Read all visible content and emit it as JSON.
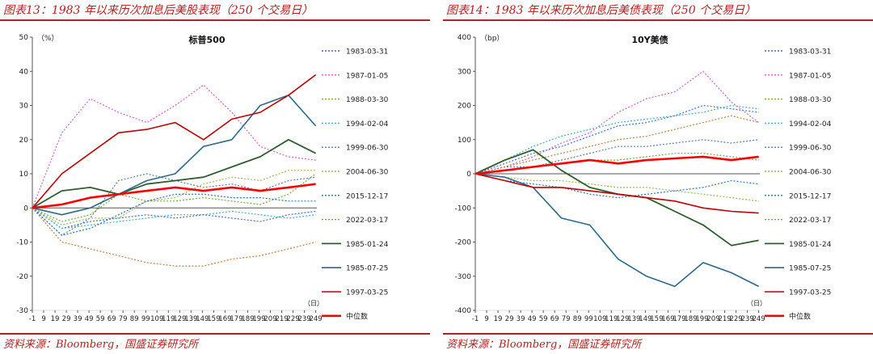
{
  "series_meta": [
    {
      "name": "1983-03-31",
      "color": "#4472c4",
      "dash": "2,2",
      "width": 1.2
    },
    {
      "name": "1987-01-05",
      "color": "#cc66cc",
      "dash": "2,2",
      "width": 1.2
    },
    {
      "name": "1988-03-30",
      "color": "#70ad47",
      "dash": "2,2",
      "width": 1.2
    },
    {
      "name": "1994-02-04",
      "color": "#4bacc6",
      "dash": "2,2",
      "width": 1.2
    },
    {
      "name": "1999-06-30",
      "color": "#5b7fb0",
      "dash": "2,2",
      "width": 1.2
    },
    {
      "name": "2004-06-30",
      "color": "#9bbb59",
      "dash": "2,2",
      "width": 1.2
    },
    {
      "name": "2015-12-17",
      "color": "#2e75b6",
      "dash": "2,2",
      "width": 1.2
    },
    {
      "name": "2022-03-17",
      "color": "#c0804a",
      "dash": "2,2",
      "width": 1.2
    },
    {
      "name": "1985-01-24",
      "color": "#2e5e2e",
      "dash": "",
      "width": 1.8
    },
    {
      "name": "1985-07-25",
      "color": "#2a6a8a",
      "dash": "",
      "width": 1.6
    },
    {
      "name": "1997-03-25",
      "color": "#c00000",
      "dash": "",
      "width": 1.6
    },
    {
      "name": "中位数",
      "color": "#ff0000",
      "dash": "",
      "width": 2.6
    }
  ],
  "chart_data": [
    {
      "type": "line",
      "figure_title": "图表13：1983 年以来历次加息后美股表现（250 个交易日）",
      "title": "标普500",
      "source": "资料来源：Bloomberg，国盛证券研究所",
      "unit": "（%）",
      "xunit": "（日）",
      "xlim": [
        -1,
        250
      ],
      "ylim": [
        -30,
        50
      ],
      "yticks": [
        50,
        40,
        30,
        20,
        10,
        0,
        -10,
        -20,
        -30
      ],
      "xticks": [
        -1,
        9,
        19,
        29,
        39,
        49,
        59,
        69,
        79,
        89,
        99,
        109,
        119,
        129,
        139,
        149,
        159,
        169,
        179,
        189,
        199,
        209,
        219,
        229,
        239,
        249
      ],
      "x": [
        -1,
        25,
        50,
        75,
        100,
        125,
        150,
        175,
        200,
        225,
        249
      ],
      "series": [
        {
          "name": "1983-03-31",
          "values": [
            0,
            -6,
            -4,
            -3,
            -2,
            -3,
            -2,
            -3,
            -4,
            -2,
            -1
          ]
        },
        {
          "name": "1987-01-05",
          "values": [
            0,
            22,
            32,
            28,
            25,
            30,
            36,
            28,
            18,
            15,
            14
          ]
        },
        {
          "name": "1988-03-30",
          "values": [
            0,
            -4,
            -2,
            4,
            2,
            2,
            3,
            2,
            1,
            4,
            10
          ]
        },
        {
          "name": "1994-02-04",
          "values": [
            0,
            -6,
            -5,
            -4,
            -3,
            -2,
            -2,
            -1,
            -2,
            -3,
            -2
          ]
        },
        {
          "name": "1999-06-30",
          "values": [
            0,
            -8,
            -3,
            8,
            10,
            8,
            6,
            7,
            5,
            8,
            9
          ]
        },
        {
          "name": "2004-06-30",
          "values": [
            0,
            -5,
            -3,
            -3,
            2,
            3,
            7,
            9,
            8,
            11,
            11
          ]
        },
        {
          "name": "2015-12-17",
          "values": [
            0,
            -8,
            -6,
            -2,
            2,
            4,
            4,
            3,
            3,
            2,
            2
          ]
        },
        {
          "name": "2022-03-17",
          "values": [
            0,
            -10,
            -12,
            -14,
            -16,
            -17,
            -17,
            -15,
            -14,
            -12,
            -10
          ]
        },
        {
          "name": "1985-01-24",
          "values": [
            0,
            5,
            6,
            4,
            7,
            8,
            9,
            12,
            15,
            20,
            16
          ]
        },
        {
          "name": "1985-07-25",
          "values": [
            0,
            -2,
            0,
            4,
            8,
            10,
            18,
            20,
            30,
            33,
            24
          ]
        },
        {
          "name": "1997-03-25",
          "values": [
            0,
            10,
            16,
            22,
            23,
            25,
            20,
            26,
            28,
            33,
            39
          ]
        },
        {
          "name": "中位数",
          "values": [
            0,
            1,
            3,
            4,
            5,
            6,
            5,
            6,
            5,
            6,
            7
          ]
        }
      ]
    },
    {
      "type": "line",
      "figure_title": "图表14：1983 年以来历次加息后美债表现（250 个交易日）",
      "title": "10Y美债",
      "source": "资料来源：Bloomberg，国盛证券研究所",
      "unit": "（bp）",
      "xunit": "（日）",
      "xlim": [
        -1,
        250
      ],
      "ylim": [
        -400,
        400
      ],
      "yticks": [
        400,
        300,
        200,
        100,
        0,
        -100,
        -200,
        -300,
        -400
      ],
      "xticks": [
        -1,
        9,
        19,
        29,
        39,
        49,
        59,
        69,
        79,
        89,
        99,
        109,
        119,
        129,
        139,
        149,
        159,
        169,
        179,
        189,
        199,
        209,
        219,
        229,
        239,
        249
      ],
      "x": [
        -1,
        25,
        50,
        75,
        100,
        125,
        150,
        175,
        200,
        225,
        249
      ],
      "series": [
        {
          "name": "1983-03-31",
          "values": [
            0,
            30,
            60,
            80,
            110,
            140,
            150,
            170,
            200,
            190,
            180
          ]
        },
        {
          "name": "1987-01-05",
          "values": [
            0,
            20,
            50,
            90,
            120,
            180,
            220,
            240,
            300,
            210,
            150
          ]
        },
        {
          "name": "1988-03-30",
          "values": [
            0,
            10,
            20,
            30,
            40,
            40,
            50,
            60,
            60,
            50,
            40
          ]
        },
        {
          "name": "1994-02-04",
          "values": [
            0,
            40,
            80,
            110,
            130,
            150,
            160,
            170,
            180,
            200,
            190
          ]
        },
        {
          "name": "1999-06-30",
          "values": [
            0,
            20,
            20,
            40,
            60,
            80,
            80,
            90,
            100,
            90,
            100
          ]
        },
        {
          "name": "2004-06-30",
          "values": [
            0,
            -10,
            -20,
            -20,
            -30,
            -40,
            -40,
            -50,
            -60,
            -70,
            -80
          ]
        },
        {
          "name": "2015-12-17",
          "values": [
            0,
            -20,
            -30,
            -40,
            -60,
            -70,
            -60,
            -50,
            -40,
            -20,
            -30
          ]
        },
        {
          "name": "2022-03-17",
          "values": [
            0,
            20,
            40,
            60,
            80,
            100,
            110,
            130,
            150,
            170,
            150
          ]
        },
        {
          "name": "1985-01-24",
          "values": [
            0,
            40,
            70,
            10,
            -40,
            -60,
            -70,
            -110,
            -150,
            -210,
            -195
          ]
        },
        {
          "name": "1985-07-25",
          "values": [
            0,
            -10,
            -40,
            -130,
            -150,
            -250,
            -300,
            -330,
            -260,
            -290,
            -330
          ]
        },
        {
          "name": "1997-03-25",
          "values": [
            0,
            -20,
            -40,
            -40,
            -50,
            -60,
            -70,
            -80,
            -100,
            -110,
            -115
          ]
        },
        {
          "name": "中位数",
          "values": [
            0,
            10,
            20,
            30,
            40,
            30,
            40,
            45,
            50,
            40,
            50
          ]
        }
      ]
    }
  ]
}
